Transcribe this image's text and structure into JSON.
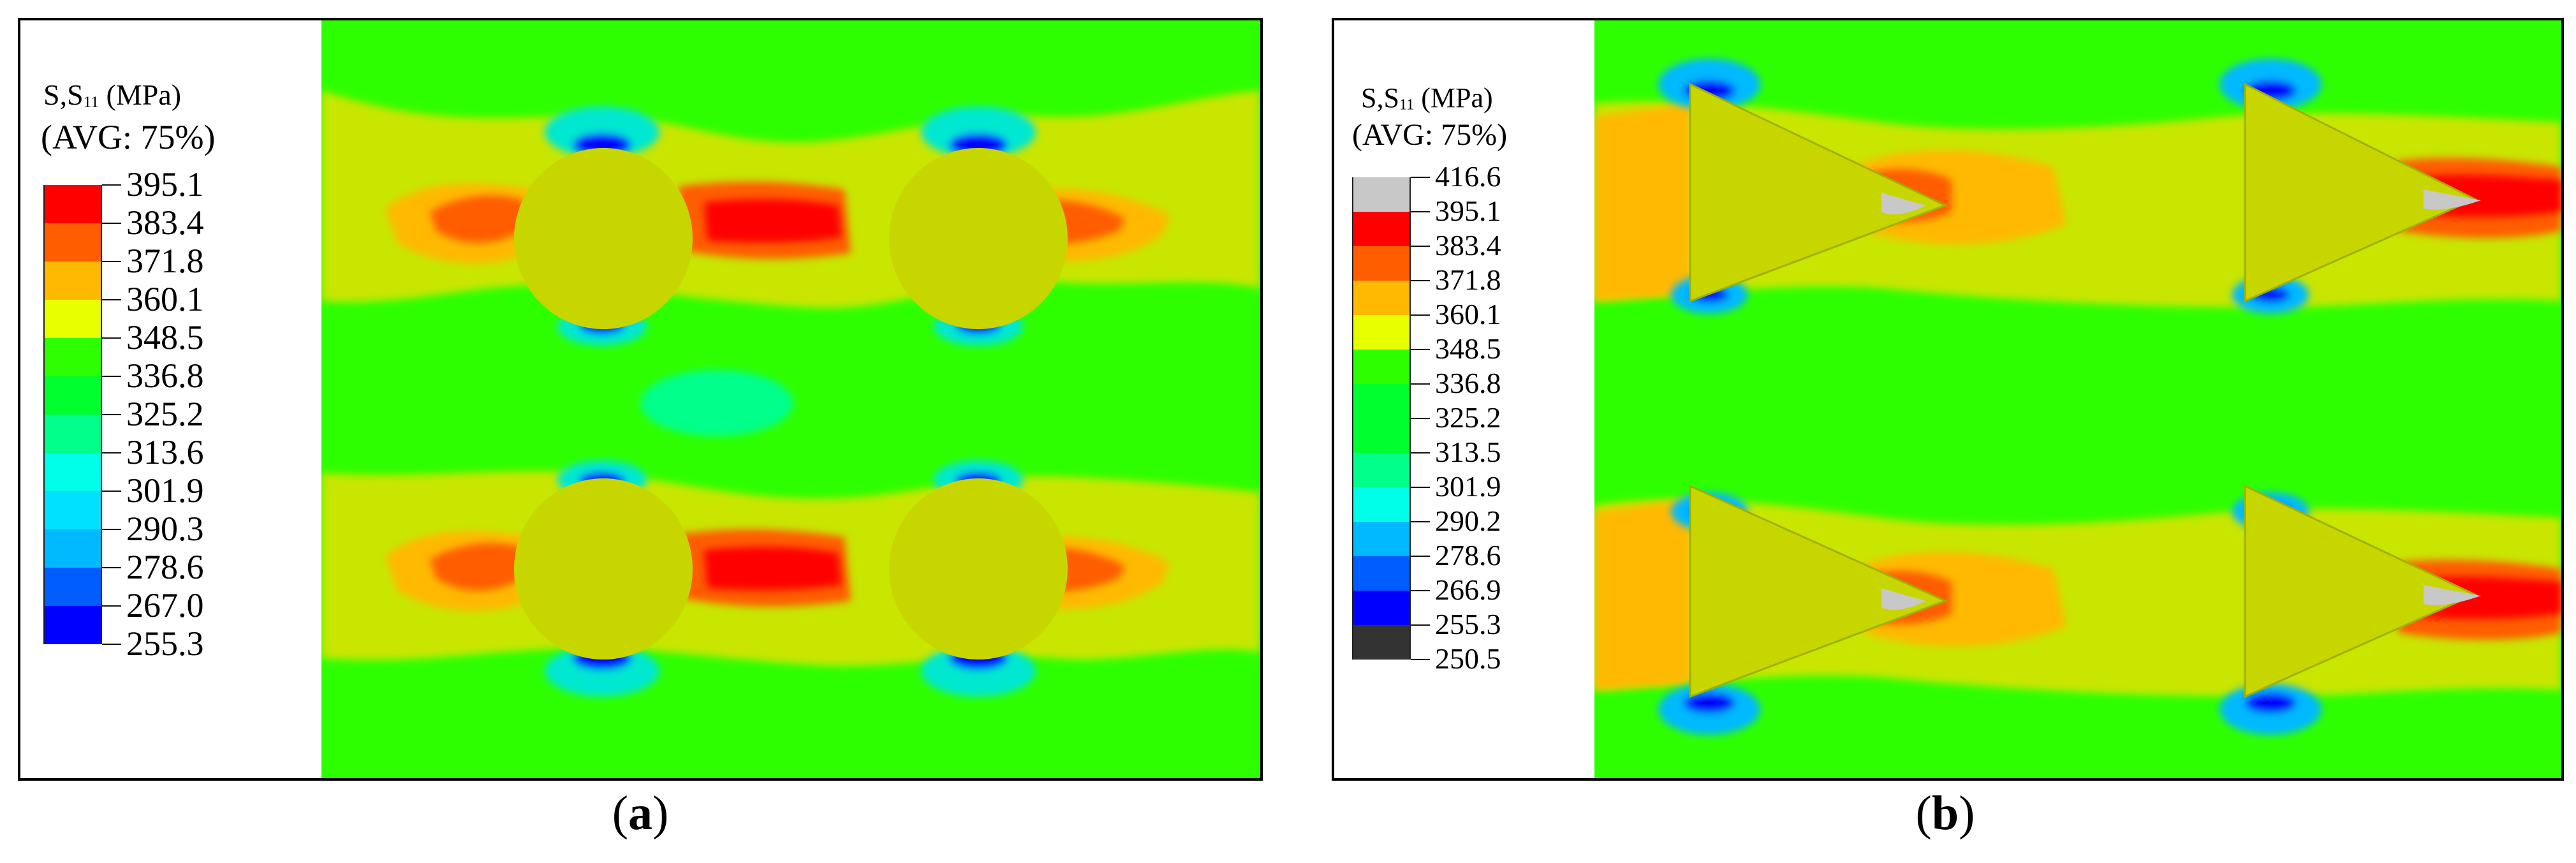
{
  "palette": [
    "#0000ff",
    "#005dff",
    "#00b9ff",
    "#00ffe8",
    "#00ff8b",
    "#00ff2e",
    "#2eff00",
    "#8bff00",
    "#e8ff00",
    "#ffb900",
    "#ff5d00",
    "#ff0000",
    "#c8c8c8",
    "#333333"
  ],
  "panels": [
    {
      "id": "a",
      "caption_open": "(",
      "caption_letter": "a",
      "caption_close": ")",
      "legend": {
        "var": "S,S",
        "sub": "11",
        "unit": " (MPa)",
        "avg": "(AVG: 75%)",
        "values": [
          "395.1",
          "383.4",
          "371.8",
          "360.1",
          "348.5",
          "336.8",
          "325.2",
          "313.6",
          "301.9",
          "290.3",
          "278.6",
          "267.0",
          "255.3"
        ],
        "colors": [
          "#ff0000",
          "#ff5d00",
          "#ffb900",
          "#e8ff00",
          "#2eff00",
          "#00ff2e",
          "#00ff8b",
          "#00ffe8",
          "#00e0ff",
          "#00b9ff",
          "#005dff",
          "#0000ff"
        ]
      }
    },
    {
      "id": "b",
      "caption_open": "(",
      "caption_letter": "b",
      "caption_close": ")",
      "legend": {
        "var": "S,S",
        "sub": "11",
        "unit": " (MPa)",
        "avg": "(AVG: 75%)",
        "values": [
          "416.6",
          "395.1",
          "383.4",
          "371.8",
          "360.1",
          "348.5",
          "336.8",
          "325.2",
          "313.5",
          "301.9",
          "290.2",
          "278.6",
          "266.9",
          "255.3",
          "250.5"
        ],
        "colors": [
          "#c8c8c8",
          "#ff0000",
          "#ff5d00",
          "#ffb900",
          "#e8ff00",
          "#2eff00",
          "#00ff2e",
          "#00ff2e",
          "#00ff8b",
          "#00ffe8",
          "#00b9ff",
          "#005dff",
          "#0000ff",
          "#333333"
        ]
      }
    }
  ]
}
